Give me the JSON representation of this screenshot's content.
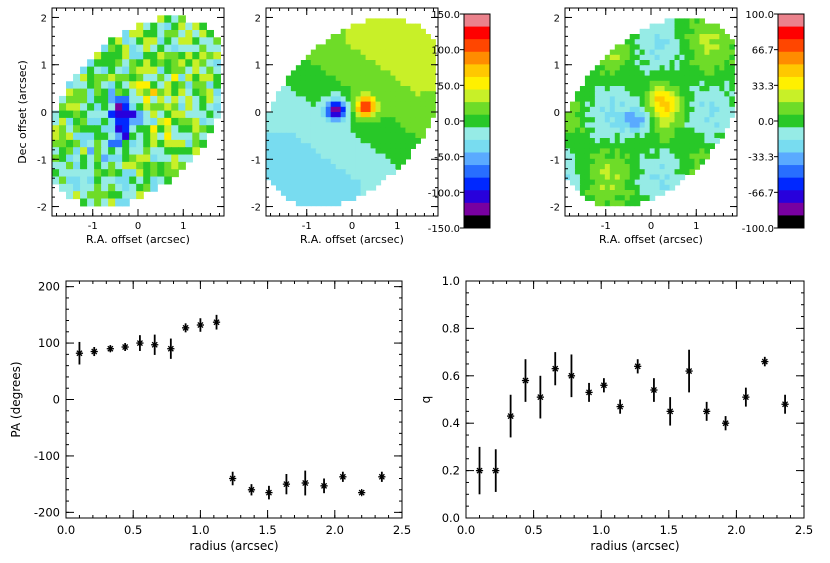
{
  "chart_data": [
    {
      "type": "heatmap",
      "id": "map1",
      "description_axis": "observed",
      "xlabel": "R.A. offset (arcsec)",
      "ylabel": "Dec offset (arcsec)",
      "xticks": [
        "-1",
        "0",
        "1"
      ],
      "yticks": [
        "2",
        "1",
        "0",
        "-1",
        "-2"
      ],
      "xlim": [
        -1.9,
        1.9
      ],
      "ylim": [
        -2.2,
        2.2
      ],
      "features": [
        {
          "kind": "blob",
          "x": -0.3,
          "y": 0.0,
          "value": -120
        },
        {
          "kind": "blob",
          "x": -0.4,
          "y": -0.4,
          "value": -90
        },
        {
          "kind": "blob",
          "x": 0.2,
          "y": 0.4,
          "value": 30
        }
      ],
      "colorbar": {
        "ticks": [
          "150.0",
          "100.0",
          "50.0",
          "0.0",
          "-50.0",
          "-100.0",
          "-150.0"
        ],
        "range": [
          -150,
          150
        ]
      }
    },
    {
      "type": "heatmap",
      "id": "map2",
      "xlabel": "R.A. offset (arcsec)",
      "ylabel": "",
      "xticks": [
        "-1",
        "0",
        "1"
      ],
      "yticks": [
        "2",
        "1",
        "0",
        "-1",
        "-2"
      ],
      "xlim": [
        -1.9,
        1.9
      ],
      "ylim": [
        -2.2,
        2.2
      ],
      "features": [
        {
          "kind": "blob",
          "x": -0.35,
          "y": 0.05,
          "value": -130
        },
        {
          "kind": "blob",
          "x": 0.3,
          "y": 0.1,
          "value": 110
        }
      ],
      "colorbar": {
        "ticks": [
          "150.0",
          "100.0",
          "50.0",
          "0.0",
          "-50.0",
          "-100.0",
          "-150.0"
        ],
        "range": [
          -150,
          150
        ]
      }
    },
    {
      "type": "heatmap",
      "id": "map3",
      "xlabel": "R.A. offset (arcsec)",
      "ylabel": "",
      "xticks": [
        "-1",
        "0",
        "1"
      ],
      "yticks": [
        "2",
        "1",
        "0",
        "-1",
        "-2"
      ],
      "xlim": [
        -1.9,
        1.9
      ],
      "ylim": [
        -2.2,
        2.2
      ],
      "features": [
        {
          "kind": "blob",
          "x": -0.3,
          "y": -0.15,
          "value": -40
        },
        {
          "kind": "blob",
          "x": 0.3,
          "y": 0.2,
          "value": 35
        }
      ],
      "colorbar": {
        "ticks": [
          "100.0",
          "66.7",
          "33.3",
          "0.0",
          "-33.3",
          "-66.7",
          "-100.0"
        ],
        "range": [
          -100,
          100
        ]
      }
    },
    {
      "type": "scatter",
      "id": "pa",
      "xlabel": "radius (arcsec)",
      "ylabel": "PA (degrees)",
      "xlim": [
        0.0,
        2.5
      ],
      "ylim": [
        -210,
        210
      ],
      "xticks": [
        "0.0",
        "0.5",
        "1.0",
        "1.5",
        "2.0",
        "2.5"
      ],
      "yticks": [
        "200",
        "100",
        "0",
        "-100",
        "-200"
      ],
      "points": [
        {
          "x": 0.1,
          "y": 82,
          "err": 20
        },
        {
          "x": 0.21,
          "y": 85,
          "err": 8
        },
        {
          "x": 0.33,
          "y": 90,
          "err": 6
        },
        {
          "x": 0.44,
          "y": 93,
          "err": 7
        },
        {
          "x": 0.55,
          "y": 100,
          "err": 14
        },
        {
          "x": 0.66,
          "y": 97,
          "err": 18
        },
        {
          "x": 0.78,
          "y": 90,
          "err": 18
        },
        {
          "x": 0.89,
          "y": 127,
          "err": 8
        },
        {
          "x": 1.0,
          "y": 132,
          "err": 12
        },
        {
          "x": 1.12,
          "y": 137,
          "err": 13
        },
        {
          "x": 1.24,
          "y": -140,
          "err": 12
        },
        {
          "x": 1.38,
          "y": -160,
          "err": 10
        },
        {
          "x": 1.51,
          "y": -165,
          "err": 12
        },
        {
          "x": 1.64,
          "y": -150,
          "err": 18
        },
        {
          "x": 1.78,
          "y": -148,
          "err": 22
        },
        {
          "x": 1.92,
          "y": -153,
          "err": 13
        },
        {
          "x": 2.06,
          "y": -137,
          "err": 9
        },
        {
          "x": 2.2,
          "y": -165,
          "err": 4
        },
        {
          "x": 2.35,
          "y": -137,
          "err": 9
        }
      ]
    },
    {
      "type": "scatter",
      "id": "q",
      "xlabel": "radius (arcsec)",
      "ylabel": "q",
      "xlim": [
        0.0,
        2.5
      ],
      "ylim": [
        0.0,
        1.0
      ],
      "xticks": [
        "0.0",
        "0.5",
        "1.0",
        "1.5",
        "2.0",
        "2.5"
      ],
      "yticks": [
        "1.0",
        "0.8",
        "0.6",
        "0.4",
        "0.2",
        "0.0"
      ],
      "points": [
        {
          "x": 0.1,
          "y": 0.2,
          "err": 0.1
        },
        {
          "x": 0.22,
          "y": 0.2,
          "err": 0.09
        },
        {
          "x": 0.33,
          "y": 0.43,
          "err": 0.09
        },
        {
          "x": 0.44,
          "y": 0.58,
          "err": 0.09
        },
        {
          "x": 0.55,
          "y": 0.51,
          "err": 0.09
        },
        {
          "x": 0.66,
          "y": 0.63,
          "err": 0.07
        },
        {
          "x": 0.78,
          "y": 0.6,
          "err": 0.09
        },
        {
          "x": 0.91,
          "y": 0.53,
          "err": 0.04
        },
        {
          "x": 1.02,
          "y": 0.56,
          "err": 0.03
        },
        {
          "x": 1.14,
          "y": 0.47,
          "err": 0.03
        },
        {
          "x": 1.27,
          "y": 0.64,
          "err": 0.03
        },
        {
          "x": 1.39,
          "y": 0.54,
          "err": 0.05
        },
        {
          "x": 1.51,
          "y": 0.45,
          "err": 0.06
        },
        {
          "x": 1.65,
          "y": 0.62,
          "err": 0.09
        },
        {
          "x": 1.78,
          "y": 0.45,
          "err": 0.04
        },
        {
          "x": 1.92,
          "y": 0.4,
          "err": 0.03
        },
        {
          "x": 2.07,
          "y": 0.51,
          "err": 0.04
        },
        {
          "x": 2.21,
          "y": 0.66,
          "err": 0.02
        },
        {
          "x": 2.36,
          "y": 0.48,
          "err": 0.04
        }
      ]
    }
  ]
}
